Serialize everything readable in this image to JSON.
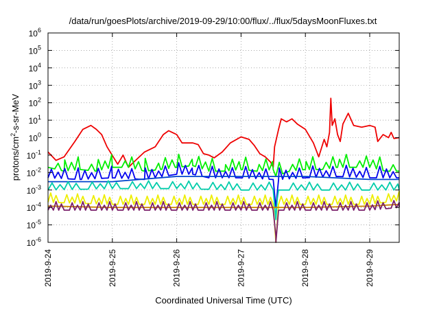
{
  "chart_data": {
    "type": "line",
    "title": "/data/run/goesPlots/archive/2019-09-29/10:00/flux/../flux/5daysMoonFluxes.txt",
    "xlabel": "Coordinated Universal Time (UTC)",
    "ylabel": "protons/cm2-s-sr-MeV",
    "ylabel_base": "protons/cm",
    "ylabel_sup": "2",
    "ylabel_rest": "-s-sr-MeV",
    "y_scale": "log",
    "ylim": [
      1e-06,
      1000000.0
    ],
    "y_ticks": [
      {
        "value": 1e-06,
        "exp": "-6"
      },
      {
        "value": 1e-05,
        "exp": "-5"
      },
      {
        "value": 0.0001,
        "exp": "-4"
      },
      {
        "value": 0.001,
        "exp": "-3"
      },
      {
        "value": 0.01,
        "exp": "-2"
      },
      {
        "value": 0.1,
        "exp": "-1"
      },
      {
        "value": 1.0,
        "exp": "0"
      },
      {
        "value": 10.0,
        "exp": "1"
      },
      {
        "value": 100.0,
        "exp": "2"
      },
      {
        "value": 1000.0,
        "exp": "3"
      },
      {
        "value": 10000.0,
        "exp": "4"
      },
      {
        "value": 100000.0,
        "exp": "5"
      },
      {
        "value": 1000000.0,
        "exp": "6"
      }
    ],
    "y_tick_base": "10",
    "xlim": [
      "2019-09-24T00:00",
      "2019-09-29T11:00"
    ],
    "x_ticks": [
      "2019-9-24",
      "2019-9-25",
      "2019-9-26",
      "2019-9-27",
      "2019-9-28",
      "2019-9-29"
    ],
    "x_tick_values": [
      "2019-09-24T00:00",
      "2019-09-25T00:00",
      "2019-09-26T00:00",
      "2019-09-27T00:00",
      "2019-09-28T00:00",
      "2019-09-29T00:00"
    ],
    "grid": true,
    "legend": "none",
    "series": [
      {
        "color": "#ee0000",
        "points": [
          [
            "2019-09-24T00:00",
            0.15
          ],
          [
            "2019-09-24T03:00",
            0.05
          ],
          [
            "2019-09-24T06:00",
            0.08
          ],
          [
            "2019-09-24T10:00",
            0.6
          ],
          [
            "2019-09-24T13:00",
            3
          ],
          [
            "2019-09-24T16:00",
            5
          ],
          [
            "2019-09-24T18:00",
            3
          ],
          [
            "2019-09-24T20:00",
            1.5
          ],
          [
            "2019-09-24T22:00",
            0.3
          ],
          [
            "2019-09-25T02:00",
            0.03
          ],
          [
            "2019-09-25T04:00",
            0.1
          ],
          [
            "2019-09-25T06:00",
            0.02
          ],
          [
            "2019-09-25T08:00",
            0.04
          ],
          [
            "2019-09-25T12:00",
            0.15
          ],
          [
            "2019-09-25T16:00",
            0.3
          ],
          [
            "2019-09-25T19:00",
            1.5
          ],
          [
            "2019-09-25T21:00",
            2.5
          ],
          [
            "2019-09-26T00:00",
            1.5
          ],
          [
            "2019-09-26T02:00",
            0.5
          ],
          [
            "2019-09-26T06:00",
            0.5
          ],
          [
            "2019-09-26T08:00",
            0.4
          ],
          [
            "2019-09-26T10:00",
            0.12
          ],
          [
            "2019-09-26T12:00",
            0.1
          ],
          [
            "2019-09-26T14:00",
            0.07
          ],
          [
            "2019-09-26T17:00",
            0.15
          ],
          [
            "2019-09-26T20:00",
            0.5
          ],
          [
            "2019-09-27T00:00",
            1.1
          ],
          [
            "2019-09-27T03:00",
            0.8
          ],
          [
            "2019-09-27T05:00",
            0.35
          ],
          [
            "2019-09-27T07:00",
            0.12
          ],
          [
            "2019-09-27T09:00",
            0.08
          ],
          [
            "2019-09-27T11:00",
            0.04
          ],
          [
            "2019-09-27T12:00",
            0.02
          ],
          [
            "2019-09-27T12:30",
            0.3
          ],
          [
            "2019-09-27T14:00",
            3
          ],
          [
            "2019-09-27T15:00",
            12
          ],
          [
            "2019-09-27T17:00",
            8
          ],
          [
            "2019-09-27T19:00",
            12
          ],
          [
            "2019-09-27T21:00",
            6
          ],
          [
            "2019-09-28T00:00",
            3
          ],
          [
            "2019-09-28T03:00",
            0.5
          ],
          [
            "2019-09-28T05:00",
            0.08
          ],
          [
            "2019-09-28T07:00",
            0.8
          ],
          [
            "2019-09-28T08:00",
            0.3
          ],
          [
            "2019-09-28T09:00",
            2
          ],
          [
            "2019-09-28T09:30",
            180
          ],
          [
            "2019-09-28T10:00",
            5
          ],
          [
            "2019-09-28T11:00",
            12
          ],
          [
            "2019-09-28T12:00",
            1.5
          ],
          [
            "2019-09-28T13:00",
            0.6
          ],
          [
            "2019-09-28T14:00",
            6
          ],
          [
            "2019-09-28T16:00",
            25
          ],
          [
            "2019-09-28T18:00",
            5
          ],
          [
            "2019-09-28T21:00",
            4
          ],
          [
            "2019-09-29T00:00",
            5
          ],
          [
            "2019-09-29T02:00",
            4
          ],
          [
            "2019-09-29T03:00",
            0.6
          ],
          [
            "2019-09-29T05:00",
            1.5
          ],
          [
            "2019-09-29T07:00",
            1
          ],
          [
            "2019-09-29T08:00",
            2
          ],
          [
            "2019-09-29T09:00",
            0.9
          ],
          [
            "2019-09-29T11:00",
            1
          ]
        ]
      },
      {
        "color": "#00ee00",
        "points": [
          [
            "2019-09-24T00:00",
            0.02
          ],
          [
            "2019-09-24T06:00",
            0.012
          ],
          [
            "2019-09-24T12:00",
            0.015
          ],
          [
            "2019-09-24T18:00",
            0.012
          ],
          [
            "2019-09-25T00:00",
            0.02
          ],
          [
            "2019-09-25T06:00",
            0.02
          ],
          [
            "2019-09-25T12:00",
            0.012
          ],
          [
            "2019-09-25T18:00",
            0.015
          ],
          [
            "2019-09-26T00:00",
            0.02
          ],
          [
            "2019-09-26T06:00",
            0.025
          ],
          [
            "2019-09-26T12:00",
            0.012
          ],
          [
            "2019-09-26T18:00",
            0.012
          ],
          [
            "2019-09-27T00:00",
            0.015
          ],
          [
            "2019-09-27T06:00",
            0.012
          ],
          [
            "2019-09-27T12:00",
            0.015
          ],
          [
            "2019-09-27T13:00",
            0.006
          ],
          [
            "2019-09-27T18:00",
            0.012
          ],
          [
            "2019-09-28T00:00",
            0.015
          ],
          [
            "2019-09-28T06:00",
            0.015
          ],
          [
            "2019-09-28T12:00",
            0.02
          ],
          [
            "2019-09-28T18:00",
            0.02
          ],
          [
            "2019-09-29T00:00",
            0.02
          ],
          [
            "2019-09-29T06:00",
            0.012
          ],
          [
            "2019-09-29T11:00",
            0.012
          ]
        ],
        "spikes": {
          "base": 0.012,
          "peak": 0.08,
          "step_hours": 2.5
        }
      },
      {
        "color": "#0000ee",
        "points": [
          [
            "2019-09-24T00:00",
            0.005
          ],
          [
            "2019-09-24T12:00",
            0.004
          ],
          [
            "2019-09-25T00:00",
            0.005
          ],
          [
            "2019-09-25T12:00",
            0.004
          ],
          [
            "2019-09-26T00:00",
            0.008
          ],
          [
            "2019-09-26T06:00",
            0.008
          ],
          [
            "2019-09-26T12:00",
            0.005
          ],
          [
            "2019-09-27T00:00",
            0.005
          ],
          [
            "2019-09-27T12:00",
            0.004
          ],
          [
            "2019-09-27T13:00",
            0.0001
          ],
          [
            "2019-09-27T14:00",
            0.004
          ],
          [
            "2019-09-28T00:00",
            0.005
          ],
          [
            "2019-09-28T12:00",
            0.006
          ],
          [
            "2019-09-29T00:00",
            0.005
          ],
          [
            "2019-09-29T11:00",
            0.005
          ]
        ],
        "spikes": {
          "base": 0.004,
          "peak": 0.02,
          "step_hours": 2.5
        }
      },
      {
        "color": "#0044cc",
        "points": [
          [
            "2019-09-24T00:00",
            0.003
          ],
          [
            "2019-09-25T00:00",
            0.003
          ],
          [
            "2019-09-26T00:00",
            0.006
          ],
          [
            "2019-09-27T00:00",
            0.006
          ],
          [
            "2019-09-27T12:00",
            0.006
          ],
          [
            "2019-09-28T00:00",
            0.006
          ],
          [
            "2019-09-29T00:00",
            0.004
          ],
          [
            "2019-09-29T11:00",
            0.004
          ]
        ]
      },
      {
        "color": "#00ccaa",
        "points": [
          [
            "2019-09-24T00:00",
            0.001
          ],
          [
            "2019-09-25T00:00",
            0.0012
          ],
          [
            "2019-09-26T00:00",
            0.0012
          ],
          [
            "2019-09-27T00:00",
            0.001
          ],
          [
            "2019-09-27T12:00",
            0.001
          ],
          [
            "2019-09-27T13:00",
            2e-05
          ],
          [
            "2019-09-27T14:00",
            0.001
          ],
          [
            "2019-09-28T00:00",
            0.001
          ],
          [
            "2019-09-29T00:00",
            0.001
          ],
          [
            "2019-09-29T11:00",
            0.001
          ]
        ],
        "spikes": {
          "base": 0.001,
          "peak": 0.003,
          "step_hours": 3
        }
      },
      {
        "color": "#eeee00",
        "points": [
          [
            "2019-09-24T00:00",
            0.0002
          ],
          [
            "2019-09-25T00:00",
            0.00015
          ],
          [
            "2019-09-26T00:00",
            0.00015
          ],
          [
            "2019-09-27T00:00",
            0.00015
          ],
          [
            "2019-09-27T12:00",
            0.00015
          ],
          [
            "2019-09-27T13:00",
            1e-06
          ],
          [
            "2019-09-27T14:00",
            0.00015
          ],
          [
            "2019-09-28T00:00",
            0.00015
          ],
          [
            "2019-09-29T00:00",
            0.00015
          ],
          [
            "2019-09-29T11:00",
            0.00025
          ]
        ],
        "spikes": {
          "base": 0.00015,
          "peak": 0.0006,
          "step_hours": 2
        }
      },
      {
        "color": "#cc8800",
        "points": [
          [
            "2019-09-24T00:00",
            0.00012
          ],
          [
            "2019-09-25T00:00",
            0.0001
          ],
          [
            "2019-09-26T00:00",
            0.0001
          ],
          [
            "2019-09-27T00:00",
            0.0001
          ],
          [
            "2019-09-28T00:00",
            0.0001
          ],
          [
            "2019-09-29T00:00",
            0.00012
          ],
          [
            "2019-09-29T11:00",
            0.00015
          ]
        ]
      },
      {
        "color": "#7a1f6a",
        "points": [
          [
            "2019-09-24T00:00",
            7e-05
          ],
          [
            "2019-09-25T00:00",
            7e-05
          ],
          [
            "2019-09-26T00:00",
            7e-05
          ],
          [
            "2019-09-27T00:00",
            7e-05
          ],
          [
            "2019-09-27T12:00",
            7e-05
          ],
          [
            "2019-09-27T13:00",
            1e-06
          ],
          [
            "2019-09-27T14:00",
            7e-05
          ],
          [
            "2019-09-28T00:00",
            7e-05
          ],
          [
            "2019-09-29T00:00",
            7e-05
          ],
          [
            "2019-09-29T11:00",
            0.0001
          ]
        ],
        "spikes": {
          "base": 7e-05,
          "peak": 0.0003,
          "step_hours": 2
        }
      }
    ]
  }
}
